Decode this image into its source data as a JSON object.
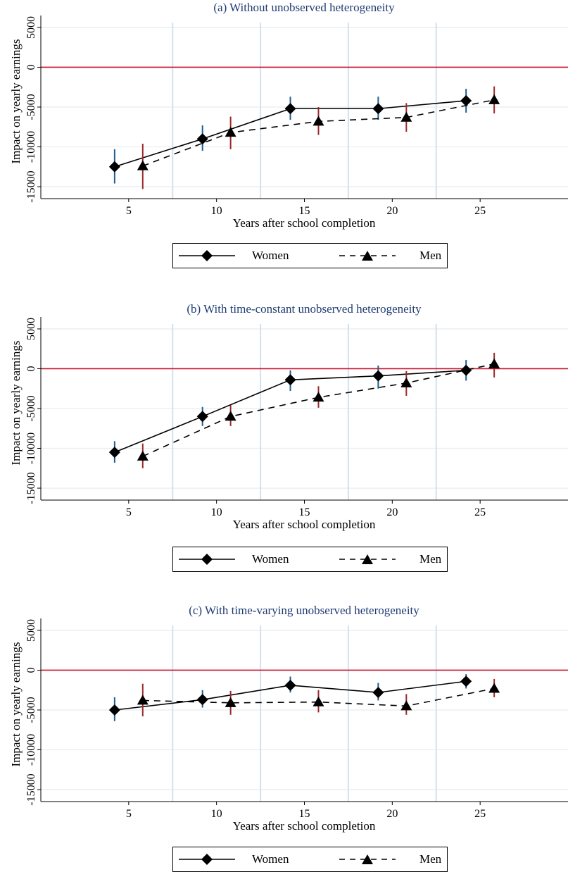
{
  "colors": {
    "women_line": "#000000",
    "men_line": "#000000",
    "women_ci": "#1f5d8c",
    "men_ci": "#9b2a2a",
    "zero_line": "#c8102e",
    "vertical_grid": "#d4e1ea",
    "horizontal_grid": "#e8eef2",
    "title": "#1f3b73"
  },
  "chart_data": [
    {
      "type": "line",
      "title": "(a) Without unobserved heterogeneity",
      "xlabel": "Years after school completion",
      "ylabel": "Impact on yearly earnings",
      "x_ticks": [
        "5",
        "10",
        "15",
        "20",
        "25"
      ],
      "y_ticks": [
        "-15000",
        "-10000",
        "-5000",
        "0",
        "5000"
      ],
      "xlim": [
        0,
        30
      ],
      "ylim": [
        -16500,
        6500
      ],
      "vertical_lines": [
        7.5,
        12.5,
        17.5,
        22.5
      ],
      "zero_line": 0,
      "legend_placement": "bottom",
      "series": [
        {
          "name": "Women",
          "marker": "diamond",
          "line": "solid",
          "x": [
            4.2,
            9.2,
            14.2,
            19.2,
            24.2
          ],
          "values": [
            -12500,
            -9000,
            -5200,
            -5200,
            -4200
          ],
          "ci_low": [
            -14600,
            -10500,
            -6600,
            -6600,
            -5700
          ],
          "ci_high": [
            -10300,
            -7300,
            -3700,
            -3700,
            -2700
          ]
        },
        {
          "name": "Men",
          "marker": "triangle",
          "line": "dashed",
          "x": [
            5.8,
            10.8,
            15.8,
            20.8,
            25.8
          ],
          "values": [
            -12400,
            -8200,
            -6800,
            -6300,
            -4100
          ],
          "ci_low": [
            -15300,
            -10300,
            -8500,
            -8100,
            -5800
          ],
          "ci_high": [
            -9600,
            -6200,
            -5000,
            -4500,
            -2400
          ]
        }
      ]
    },
    {
      "type": "line",
      "title": "(b) With time-constant unobserved heterogeneity",
      "xlabel": "Years after school completion",
      "ylabel": "Impact on yearly earnings",
      "x_ticks": [
        "5",
        "10",
        "15",
        "20",
        "25"
      ],
      "y_ticks": [
        "-15000",
        "-10000",
        "-5000",
        "0",
        "5000"
      ],
      "xlim": [
        0,
        30
      ],
      "ylim": [
        -16500,
        6500
      ],
      "vertical_lines": [
        7.5,
        12.5,
        17.5,
        22.5
      ],
      "zero_line": 0,
      "legend_placement": "bottom",
      "series": [
        {
          "name": "Women",
          "marker": "diamond",
          "line": "solid",
          "x": [
            4.2,
            9.2,
            14.2,
            19.2,
            24.2
          ],
          "values": [
            -10500,
            -6000,
            -1400,
            -900,
            -200
          ],
          "ci_low": [
            -11800,
            -7200,
            -2800,
            -2500,
            -1500
          ],
          "ci_high": [
            -9100,
            -4800,
            -200,
            400,
            1100
          ]
        },
        {
          "name": "Men",
          "marker": "triangle",
          "line": "dashed",
          "x": [
            5.8,
            10.8,
            15.8,
            20.8,
            25.8
          ],
          "values": [
            -11000,
            -6000,
            -3600,
            -1800,
            600
          ],
          "ci_low": [
            -12500,
            -7200,
            -4900,
            -3400,
            -1100
          ],
          "ci_high": [
            -9400,
            -4600,
            -2200,
            -300,
            2000
          ]
        }
      ]
    },
    {
      "type": "line",
      "title": "(c) With time-varying unobserved heterogeneity",
      "xlabel": "Years after school completion",
      "ylabel": "Impact on yearly earnings",
      "x_ticks": [
        "5",
        "10",
        "15",
        "20",
        "25"
      ],
      "y_ticks": [
        "-15000",
        "-10000",
        "-5000",
        "0",
        "5000"
      ],
      "xlim": [
        0,
        30
      ],
      "ylim": [
        -16500,
        6500
      ],
      "vertical_lines": [
        7.5,
        12.5,
        17.5,
        22.5
      ],
      "zero_line": 0,
      "legend_placement": "bottom",
      "series": [
        {
          "name": "Women",
          "marker": "diamond",
          "line": "solid",
          "x": [
            4.2,
            9.2,
            14.2,
            19.2,
            24.2
          ],
          "values": [
            -5000,
            -3700,
            -1900,
            -2800,
            -1400
          ],
          "ci_low": [
            -6400,
            -4700,
            -2800,
            -3800,
            -2300
          ],
          "ci_high": [
            -3400,
            -2500,
            -800,
            -1600,
            -500
          ]
        },
        {
          "name": "Men",
          "marker": "triangle",
          "line": "dashed",
          "x": [
            5.8,
            10.8,
            15.8,
            20.8,
            25.8
          ],
          "values": [
            -3800,
            -4100,
            -4000,
            -4500,
            -2300
          ],
          "ci_low": [
            -5800,
            -5600,
            -5300,
            -5600,
            -3400
          ],
          "ci_high": [
            -1700,
            -2600,
            -2500,
            -3000,
            -1100
          ]
        }
      ]
    }
  ]
}
